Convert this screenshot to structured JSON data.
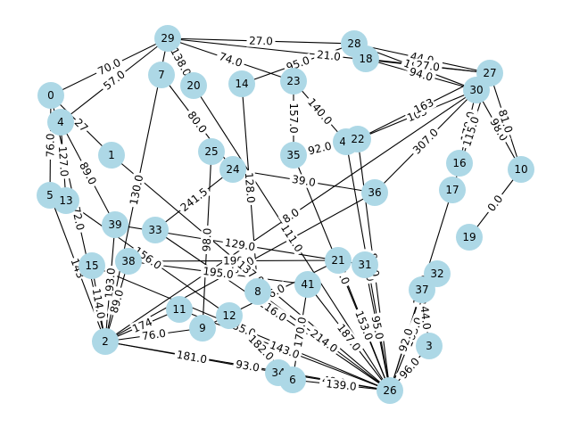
{
  "graph": {
    "node_color": "#add8e6",
    "edge_color": "#000000",
    "nodes": [
      {
        "id": "29"
      },
      {
        "id": "28"
      },
      {
        "id": "18"
      },
      {
        "id": "27"
      },
      {
        "id": "30"
      },
      {
        "id": "0"
      },
      {
        "id": "4"
      },
      {
        "id": "7"
      },
      {
        "id": "20"
      },
      {
        "id": "14"
      },
      {
        "id": "23"
      },
      {
        "id": "40"
      },
      {
        "id": "22"
      },
      {
        "id": "1"
      },
      {
        "id": "25"
      },
      {
        "id": "24"
      },
      {
        "id": "35"
      },
      {
        "id": "16"
      },
      {
        "id": "10"
      },
      {
        "id": "5"
      },
      {
        "id": "13"
      },
      {
        "id": "36"
      },
      {
        "id": "17"
      },
      {
        "id": "39"
      },
      {
        "id": "33"
      },
      {
        "id": "19"
      },
      {
        "id": "15"
      },
      {
        "id": "38"
      },
      {
        "id": "21"
      },
      {
        "id": "31"
      },
      {
        "id": "32"
      },
      {
        "id": "41"
      },
      {
        "id": "8"
      },
      {
        "id": "37"
      },
      {
        "id": "11"
      },
      {
        "id": "9"
      },
      {
        "id": "12"
      },
      {
        "id": "2"
      },
      {
        "id": "3"
      },
      {
        "id": "34"
      },
      {
        "id": "6"
      },
      {
        "id": "26"
      }
    ],
    "edges": [
      {
        "source": "29",
        "target": "28",
        "label": "27.0"
      },
      {
        "source": "29",
        "target": "0",
        "label": "70.0"
      },
      {
        "source": "29",
        "target": "4",
        "label": "57.0"
      },
      {
        "source": "29",
        "target": "20",
        "label": "138.0"
      },
      {
        "source": "29",
        "target": "23",
        "label": "74.0"
      },
      {
        "source": "29",
        "target": "2",
        "label": "130.0"
      },
      {
        "source": "29",
        "target": "27",
        "label": "21.0"
      },
      {
        "source": "28",
        "target": "27",
        "label": "44.0"
      },
      {
        "source": "28",
        "target": "30",
        "label": "18.0"
      },
      {
        "source": "18",
        "target": "27",
        "label": "27.0"
      },
      {
        "source": "18",
        "target": "30",
        "label": "94.0"
      },
      {
        "source": "14",
        "target": "28",
        "label": "95.0"
      },
      {
        "source": "0",
        "target": "1",
        "label": "27"
      },
      {
        "source": "0",
        "target": "5",
        "label": "76.0"
      },
      {
        "source": "0",
        "target": "2",
        "label": "72.0"
      },
      {
        "source": "4",
        "target": "13",
        "label": "127.0"
      },
      {
        "source": "4",
        "target": "39",
        "label": "89.0"
      },
      {
        "source": "23",
        "target": "35",
        "label": "157.0"
      },
      {
        "source": "23",
        "target": "40",
        "label": "140.0"
      },
      {
        "source": "22",
        "target": "30",
        "label": "103"
      },
      {
        "source": "22",
        "target": "27",
        "label": "163"
      },
      {
        "source": "40",
        "target": "26",
        "label": "129.0"
      },
      {
        "source": "10",
        "target": "30",
        "label": "98.0"
      },
      {
        "source": "10",
        "target": "27",
        "label": "81.0"
      },
      {
        "source": "16",
        "target": "30",
        "label": "179.0"
      },
      {
        "source": "17",
        "target": "27",
        "label": "115.0"
      },
      {
        "source": "19",
        "target": "10",
        "label": "0.0"
      },
      {
        "source": "35",
        "target": "40",
        "label": "92.0"
      },
      {
        "source": "35",
        "target": "26",
        "label": "67.0"
      },
      {
        "source": "36",
        "target": "24",
        "label": "39.0"
      },
      {
        "source": "36",
        "target": "2",
        "label": "100.0"
      },
      {
        "source": "24",
        "target": "33",
        "label": "241.5"
      },
      {
        "source": "25",
        "target": "9",
        "label": "98.0"
      },
      {
        "source": "33",
        "target": "26",
        "label": "216.0"
      },
      {
        "source": "39",
        "target": "31",
        "label": "129.0"
      },
      {
        "source": "39",
        "target": "2",
        "label": "193.0"
      },
      {
        "source": "5",
        "target": "2",
        "label": "143"
      },
      {
        "source": "13",
        "target": "12",
        "label": "156.0"
      },
      {
        "source": "38",
        "target": "21",
        "label": "190"
      },
      {
        "source": "38",
        "target": "41",
        "label": "195.0"
      },
      {
        "source": "15",
        "target": "26",
        "label": "135.0"
      },
      {
        "source": "15",
        "target": "2",
        "label": "114.0"
      },
      {
        "source": "21",
        "target": "9",
        "label": "246.0"
      },
      {
        "source": "21",
        "target": "26",
        "label": "153.0"
      },
      {
        "source": "31",
        "target": "26",
        "label": "95.0"
      },
      {
        "source": "32",
        "target": "26",
        "label": "163.0"
      },
      {
        "source": "37",
        "target": "26",
        "label": "92.0"
      },
      {
        "source": "37",
        "target": "3",
        "label": "44.0"
      },
      {
        "source": "8",
        "target": "26",
        "label": "214.0"
      },
      {
        "source": "41",
        "target": "6",
        "label": "170.0"
      },
      {
        "source": "41",
        "target": "26",
        "label": "187.0"
      },
      {
        "source": "11",
        "target": "26",
        "label": "143.0"
      },
      {
        "source": "11",
        "target": "2",
        "label": "174"
      },
      {
        "source": "9",
        "target": "2",
        "label": "76.0"
      },
      {
        "source": "12",
        "target": "6",
        "label": "182.0"
      },
      {
        "source": "2",
        "target": "26",
        "label": "93.0"
      },
      {
        "source": "2",
        "target": "34",
        "label": "181.0"
      },
      {
        "source": "2",
        "target": "38",
        "label": "89.0"
      },
      {
        "source": "34",
        "target": "26",
        "label": "48.0"
      },
      {
        "source": "6",
        "target": "26",
        "label": "139.0"
      },
      {
        "source": "3",
        "target": "26",
        "label": "96.0"
      },
      {
        "source": "20",
        "target": "26",
        "label": "111.0"
      },
      {
        "source": "7",
        "target": "24",
        "label": "80.0"
      },
      {
        "source": "1",
        "target": "26",
        "label": "137.0"
      },
      {
        "source": "14",
        "target": "8",
        "label": "128.0"
      },
      {
        "source": "36",
        "target": "30",
        "label": "307.0"
      },
      {
        "source": "22",
        "target": "26",
        "label": "81.0"
      },
      {
        "source": "17",
        "target": "26",
        "label": "127.0"
      },
      {
        "source": "2",
        "target": "30",
        "label": "8.0"
      }
    ]
  }
}
